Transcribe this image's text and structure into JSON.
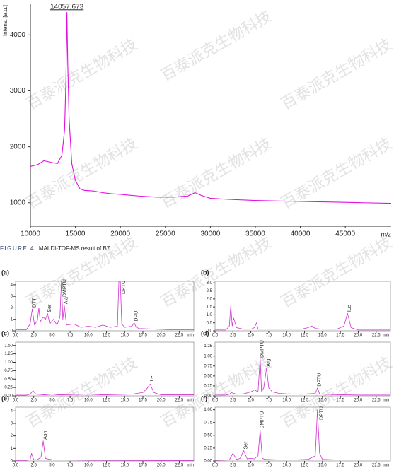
{
  "watermark": "百泰派克生物科技",
  "caption": {
    "label": "FIGURE 4",
    "text": "MALDI-TOF-MS result of B7"
  },
  "chart_data": [
    {
      "type": "line",
      "ylabel": "Intens. [a.u.]",
      "xlabel": "m/z",
      "x": [
        10000,
        10800,
        11500,
        12300,
        13000,
        13500,
        13800,
        13950,
        14057.673,
        14150,
        14300,
        14600,
        15000,
        15500,
        16000,
        17000,
        18000,
        19000,
        20000,
        22000,
        24000,
        26000,
        27500,
        28300,
        29000,
        30000,
        32000,
        35000,
        38000,
        41000,
        44000,
        47000,
        50100
      ],
      "values": [
        1650,
        1680,
        1750,
        1720,
        1700,
        1850,
        2300,
        3200,
        4400,
        3500,
        2500,
        1700,
        1400,
        1250,
        1220,
        1210,
        1180,
        1160,
        1150,
        1120,
        1100,
        1100,
        1120,
        1180,
        1130,
        1080,
        1060,
        1040,
        1030,
        1020,
        1010,
        1000,
        990
      ],
      "color": "#e010e0",
      "annotations": [
        {
          "text": "14057.673",
          "x": 14057.673,
          "y": 4400
        }
      ],
      "xlim": [
        10000,
        50100
      ],
      "xticks": [
        10000,
        15000,
        20000,
        25000,
        30000,
        35000,
        40000,
        45000
      ],
      "ylim": [
        580,
        4560
      ],
      "yticks": [
        1000,
        2000,
        3000,
        4000
      ]
    },
    {
      "type": "line",
      "title": "(a)",
      "xlabel": "min",
      "x": [
        0,
        1.5,
        2,
        2.3,
        2.6,
        3,
        3.2,
        3.4,
        3.8,
        4.1,
        4.4,
        4.7,
        5.2,
        5.7,
        6.1,
        6.3,
        6.5,
        6.7,
        7,
        8,
        9,
        10,
        11,
        12,
        13,
        14,
        14.2,
        14.4,
        14.6,
        15,
        16,
        16.3,
        16.6,
        17,
        19,
        21,
        24.5
      ],
      "values": [
        0.1,
        0.1,
        0.6,
        1.9,
        0.5,
        0.9,
        2.0,
        0.8,
        1.2,
        1.0,
        1.5,
        0.6,
        1.0,
        0.5,
        1.2,
        4.3,
        1.0,
        2.2,
        0.5,
        0.6,
        0.3,
        0.4,
        0.3,
        0.5,
        0.3,
        0.4,
        4.3,
        4.3,
        0.6,
        0.3,
        0.4,
        0.7,
        0.3,
        0.2,
        0.15,
        0.1,
        0.1
      ],
      "color": "#d030d0",
      "annotations": [
        {
          "text": "DTT",
          "x": 2.3,
          "y": 1.9
        },
        {
          "text": "Ser",
          "x": 4.4,
          "y": 1.5
        },
        {
          "text": "DMPTU",
          "x": 6.5,
          "y": 4.2
        },
        {
          "text": "Ala",
          "x": 6.7,
          "y": 2.2
        },
        {
          "text": "DPTU",
          "x": 14.6,
          "y": 4.2
        },
        {
          "text": "DPU",
          "x": 16.3,
          "y": 0.7
        }
      ],
      "xlim": [
        0,
        24.5
      ],
      "xticks": [
        {
          "value": 0,
          "label": "0.0"
        },
        2.5,
        {
          "value": 5,
          "label": "5.0"
        },
        7.5,
        {
          "value": 10,
          "label": "10.0"
        },
        12.5,
        {
          "value": 15,
          "label": "15.0"
        },
        17.5,
        {
          "value": 20,
          "label": "20.0"
        },
        22.5
      ],
      "ylim": [
        0,
        4.3
      ],
      "yticks": [
        0,
        1,
        2,
        3,
        4
      ]
    },
    {
      "type": "line",
      "title": "(b)",
      "xlabel": "min",
      "x": [
        0,
        1.5,
        2,
        2.2,
        2.4,
        2.6,
        3,
        4,
        5,
        5.5,
        5.8,
        6,
        8,
        10,
        12,
        13,
        13.5,
        14,
        15,
        17,
        18,
        18.5,
        19,
        20,
        24.5
      ],
      "values": [
        0.05,
        0.05,
        0.3,
        1.6,
        0.3,
        0.8,
        0.2,
        0.1,
        0.1,
        0.2,
        0.5,
        0.1,
        0.1,
        0.1,
        0.1,
        0.2,
        0.3,
        0.15,
        0.1,
        0.1,
        0.3,
        1.1,
        0.2,
        0.05,
        0.05
      ],
      "color": "#d030d0",
      "annotations": [
        {
          "text": "ILe",
          "x": 18.5,
          "y": 1.1
        }
      ],
      "xlim": [
        0,
        24.5
      ],
      "xticks": [
        {
          "value": 0,
          "label": "0.0"
        },
        2.5,
        {
          "value": 5,
          "label": "5.0"
        },
        7.5,
        {
          "value": 10,
          "label": "10.0"
        },
        12.5,
        {
          "value": 15,
          "label": "15.0"
        },
        17.5,
        {
          "value": 20,
          "label": "20.0"
        },
        22.5
      ],
      "ylim": [
        0,
        3.1
      ],
      "yticks": [
        {
          "value": 0,
          "label": "0.0"
        },
        0.5,
        {
          "value": 1,
          "label": "1.0"
        },
        1.5,
        {
          "value": 2,
          "label": "2.0"
        },
        2.5,
        {
          "value": 3,
          "label": "3.0"
        }
      ]
    },
    {
      "type": "line",
      "title": "(c)",
      "xlabel": "min",
      "x": [
        0,
        1.5,
        2,
        2.4,
        2.8,
        4,
        5,
        6,
        8,
        10,
        12,
        14,
        16,
        17.5,
        18,
        18.5,
        19,
        20,
        24.5
      ],
      "values": [
        0.02,
        0.02,
        0.05,
        0.15,
        0.05,
        0.03,
        0.05,
        0.03,
        0.04,
        0.05,
        0.03,
        0.04,
        0.05,
        0.1,
        0.2,
        0.35,
        0.1,
        0.03,
        0.03
      ],
      "color": "#d030d0",
      "annotations": [
        {
          "text": "ILe",
          "x": 18.5,
          "y": 0.35
        }
      ],
      "xlim": [
        0,
        24.5
      ],
      "xticks": [
        {
          "value": 0,
          "label": "0.0"
        },
        2.5,
        {
          "value": 5,
          "label": "5.0"
        },
        7.5,
        {
          "value": 10,
          "label": "10.0"
        },
        12.5,
        {
          "value": 15,
          "label": "15.0"
        },
        17.5,
        {
          "value": 20,
          "label": "20.0"
        },
        22.5
      ],
      "ylim": [
        0,
        1.6
      ],
      "yticks": [
        {
          "value": 0,
          "label": "0.00"
        },
        0.25,
        {
          "value": 0.5,
          "label": "0.50"
        },
        0.75,
        {
          "value": 1,
          "label": "1.00"
        },
        1.25,
        {
          "value": 1.5,
          "label": "1.50"
        }
      ]
    },
    {
      "type": "line",
      "title": "(d)",
      "xlabel": "min",
      "x": [
        0,
        1.5,
        2,
        2.3,
        3,
        4,
        5,
        5.5,
        6,
        6.3,
        6.5,
        6.8,
        7.2,
        7.5,
        8,
        9,
        10,
        12,
        13,
        14,
        14.3,
        14.6,
        15,
        17,
        20,
        24.5
      ],
      "values": [
        0.02,
        0.02,
        0.04,
        0.08,
        0.04,
        0.05,
        0.1,
        0.15,
        0.1,
        0.95,
        0.1,
        0.2,
        0.7,
        0.2,
        0.1,
        0.06,
        0.05,
        0.04,
        0.05,
        0.06,
        0.2,
        0.05,
        0.04,
        0.03,
        0.02,
        0.02
      ],
      "color": "#d030d0",
      "annotations": [
        {
          "text": "DMPTU",
          "x": 6.3,
          "y": 0.95
        },
        {
          "text": "Arg",
          "x": 7.2,
          "y": 0.7
        },
        {
          "text": "DPTU",
          "x": 14.3,
          "y": 0.2
        }
      ],
      "xlim": [
        0,
        24.5
      ],
      "xticks": [
        {
          "value": 0,
          "label": "0.0"
        },
        2.5,
        {
          "value": 5,
          "label": "5.0"
        },
        7.5,
        {
          "value": 10,
          "label": "10.0"
        },
        12.5,
        {
          "value": 15,
          "label": "15.0"
        },
        17.5,
        {
          "value": 20,
          "label": "20.0"
        },
        22.5
      ],
      "ylim": [
        0,
        1.35
      ],
      "yticks": [
        {
          "value": 0,
          "label": "0.00"
        },
        0.25,
        {
          "value": 0.5,
          "label": "0.50"
        },
        0.75,
        {
          "value": 1,
          "label": "1.00"
        },
        1.25
      ]
    },
    {
      "type": "line",
      "title": "(e)",
      "xlabel": "min",
      "x": [
        0,
        1.5,
        2,
        2.2,
        2.5,
        3,
        3.5,
        3.8,
        4.1,
        5,
        7,
        10,
        15,
        20,
        24.5
      ],
      "values": [
        0.05,
        0.05,
        0.1,
        0.6,
        0.1,
        0.1,
        0.3,
        1.6,
        0.2,
        0.1,
        0.08,
        0.06,
        0.05,
        0.04,
        0.04
      ],
      "color": "#d030d0",
      "annotations": [
        {
          "text": "Asn",
          "x": 3.8,
          "y": 1.6
        }
      ],
      "xlim": [
        0,
        24.5
      ],
      "xticks": [
        {
          "value": 0,
          "label": "0.0"
        },
        2.5,
        {
          "value": 5,
          "label": "5.0"
        },
        7.5,
        {
          "value": 10,
          "label": "10.0"
        },
        12.5,
        {
          "value": 15,
          "label": "15.0"
        },
        17.5,
        {
          "value": 20,
          "label": "20.0"
        },
        22.5
      ],
      "ylim": [
        0,
        4.3
      ],
      "yticks": [
        0,
        1,
        2,
        3,
        4
      ]
    },
    {
      "type": "line",
      "title": "(f)",
      "xlabel": "min",
      "x": [
        0,
        2,
        2.5,
        3,
        3.5,
        4,
        4.5,
        5,
        5.5,
        6,
        6.3,
        6.6,
        7,
        9,
        11,
        13,
        14,
        14.3,
        14.6,
        15,
        17,
        20,
        24.5
      ],
      "values": [
        0.01,
        0.02,
        0.15,
        0.03,
        0.05,
        0.2,
        0.04,
        0.05,
        0.04,
        0.1,
        0.6,
        0.05,
        0.03,
        0.02,
        0.02,
        0.03,
        0.1,
        1.0,
        0.15,
        0.03,
        0.02,
        0.02,
        0.02
      ],
      "color": "#d030d0",
      "annotations": [
        {
          "text": "Ser",
          "x": 4,
          "y": 0.2
        },
        {
          "text": "DMPTU",
          "x": 6.3,
          "y": 0.6
        },
        {
          "text": "DPTU",
          "x": 14.6,
          "y": 0.9
        }
      ],
      "xlim": [
        0,
        24.5
      ],
      "xticks": [
        {
          "value": 0,
          "label": "0.0"
        },
        2.5,
        {
          "value": 5,
          "label": "5.0"
        },
        7.5,
        {
          "value": 10,
          "label": "10.0"
        },
        12.5,
        {
          "value": 15,
          "label": "15.0"
        },
        17.5,
        {
          "value": 20,
          "label": "20.0"
        },
        22.5
      ],
      "ylim": [
        0,
        1.05
      ],
      "yticks": [
        {
          "value": 0,
          "label": "0.00"
        },
        0.25,
        {
          "value": 0.5,
          "label": "0.50"
        },
        0.75,
        {
          "value": 1,
          "label": "1.00"
        }
      ]
    }
  ]
}
